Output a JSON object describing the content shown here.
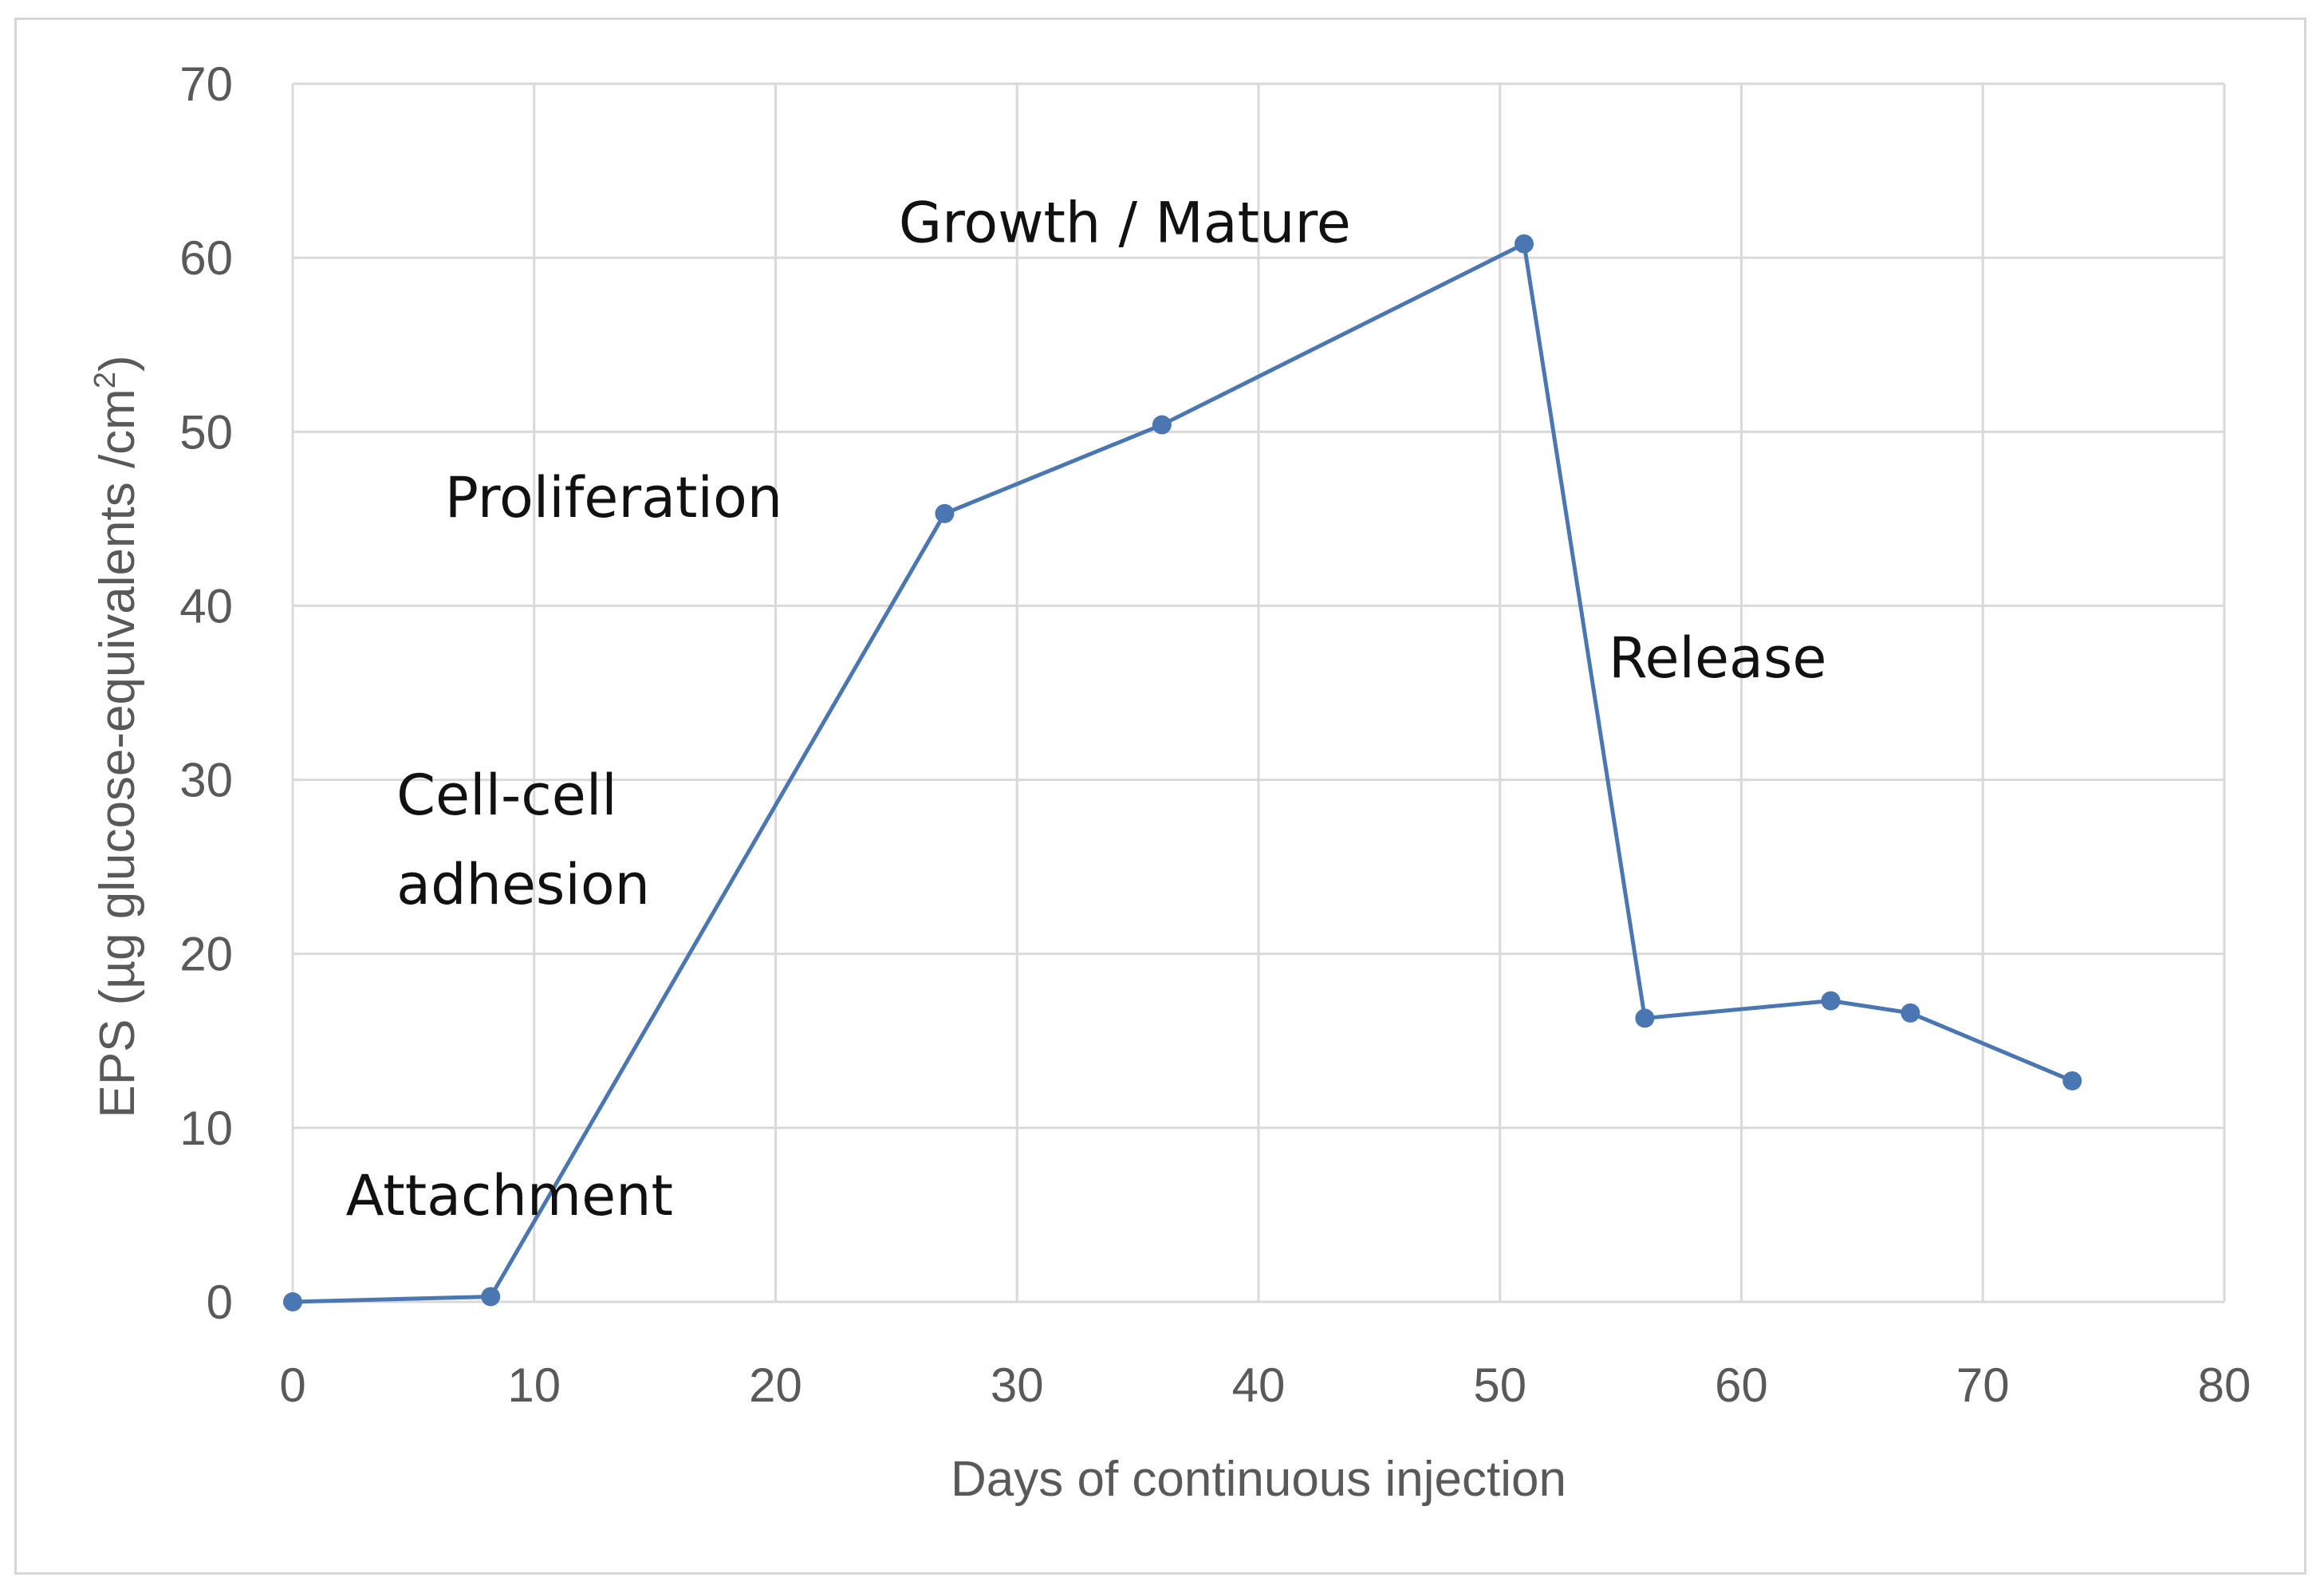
{
  "chart_data": {
    "type": "line",
    "title": "",
    "xlabel": "Days of continuous injection",
    "ylabel": "EPS (µg glucose-equivalents /cm²)",
    "ylabel_parts": {
      "main": "EPS (µg glucose-equivalents /cm",
      "sup": "2",
      "close": ")"
    },
    "xlim": [
      0,
      80
    ],
    "ylim": [
      0,
      70
    ],
    "x_ticks": [
      0,
      10,
      20,
      30,
      40,
      50,
      60,
      70,
      80
    ],
    "y_ticks": [
      0,
      10,
      20,
      30,
      40,
      50,
      60,
      70
    ],
    "grid": true,
    "series": [
      {
        "name": "EPS",
        "color": "#4a76b2",
        "x": [
          0,
          8.2,
          27,
          36,
          51,
          56,
          63.7,
          67,
          73.7
        ],
        "y": [
          0,
          0.3,
          45.3,
          50.4,
          60.8,
          16.3,
          17.3,
          16.6,
          12.7
        ]
      }
    ],
    "annotations": [
      {
        "id": "attachment",
        "lines": [
          "Attachment"
        ],
        "x": 2.2,
        "y": 5.0
      },
      {
        "id": "cell-cell-adhesion",
        "lines": [
          "Cell-cell",
          "adhesion"
        ],
        "x": 4.3,
        "y": 28.0
      },
      {
        "id": "proliferation",
        "lines": [
          "Proliferation"
        ],
        "x": 6.3,
        "y": 45.1
      },
      {
        "id": "growth-mature",
        "lines": [
          "Growth  / Mature"
        ],
        "x": 25.1,
        "y": 60.9
      },
      {
        "id": "release",
        "lines": [
          "Release"
        ],
        "x": 54.5,
        "y": 35.9
      }
    ]
  }
}
